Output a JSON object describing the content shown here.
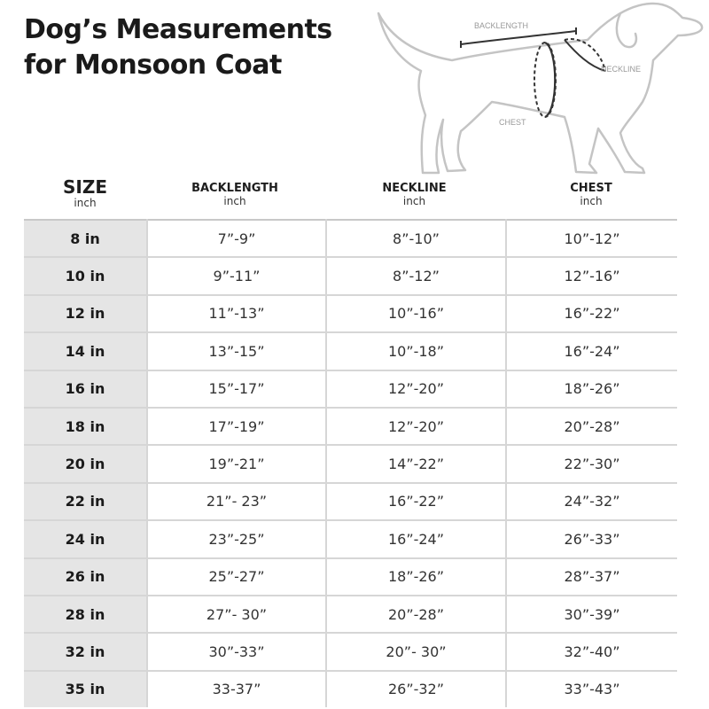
{
  "title": {
    "line1": "Dog’s Measurements",
    "line2": "for Monsoon Coat"
  },
  "diagram": {
    "backlength_label": "BACKLENGTH",
    "neckline_label": "NECKLINE",
    "chest_label": "CHEST"
  },
  "headers": [
    {
      "label": "SIZE",
      "unit": "inch"
    },
    {
      "label": "BACKLENGTH",
      "unit": "inch"
    },
    {
      "label": "NECKLINE",
      "unit": "inch"
    },
    {
      "label": "CHEST",
      "unit": "inch"
    }
  ],
  "rows": [
    [
      "8 in",
      "7”-9”",
      "8”-10”",
      "10”-12”"
    ],
    [
      "10 in",
      "9”-11”",
      "8”-12”",
      "12”-16”"
    ],
    [
      "12 in",
      "11”-13”",
      "10”-16”",
      "16”-22”"
    ],
    [
      "14 in",
      "13”-15”",
      "10”-18”",
      "16”-24”"
    ],
    [
      "16 in",
      "15”-17”",
      "12”-20”",
      "18”-26”"
    ],
    [
      "18 in",
      "17”-19”",
      "12”-20”",
      "20”-28”"
    ],
    [
      "20 in",
      "19”-21”",
      "14”-22”",
      "22”-30”"
    ],
    [
      "22 in",
      "21”- 23”",
      "16”-22”",
      "24”-32”"
    ],
    [
      "24 in",
      "23”-25”",
      "16”-24”",
      "26”-33”"
    ],
    [
      "26 in",
      "25”-27”",
      "18”-26”",
      "28”-37”"
    ],
    [
      "28 in",
      "27”- 30”",
      "20”-28”",
      "30”-39”"
    ],
    [
      "32 in",
      "30”-33”",
      "20”- 30”",
      "32”-40”"
    ],
    [
      "35 in",
      "33-37”",
      "26”-32”",
      "33”-43”"
    ]
  ]
}
